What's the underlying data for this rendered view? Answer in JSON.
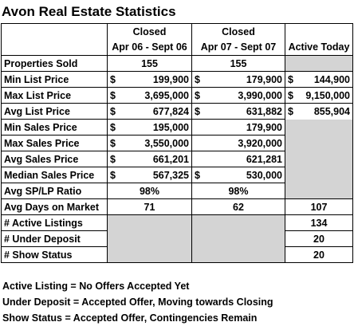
{
  "title": "Avon Real Estate Statistics",
  "headers": {
    "closed1_line1": "Closed",
    "closed1_line2": "Apr 06 - Sept 06",
    "closed2_line1": "Closed",
    "closed2_line2": "Apr 07 - Sept 07",
    "active": "Active Today"
  },
  "rows": [
    {
      "label": "Properties Sold",
      "c1": "155",
      "c2": "155",
      "active": ""
    },
    {
      "label": "Min List Price",
      "c1": "199,900",
      "c2": "179,900",
      "active": "144,900"
    },
    {
      "label": "Max List Price",
      "c1": "3,695,000",
      "c2": "3,990,000",
      "active": "9,150,000"
    },
    {
      "label": "Avg List Price",
      "c1": "677,824",
      "c2": "631,882",
      "active": "855,904"
    },
    {
      "label": "Min Sales Price",
      "c1": "195,000",
      "c2": "179,900",
      "active": ""
    },
    {
      "label": "Max Sales Price",
      "c1": "3,550,000",
      "c2": "3,920,000",
      "active": ""
    },
    {
      "label": "Avg Sales Price",
      "c1": "661,201",
      "c2": "621,281",
      "active": ""
    },
    {
      "label": "Median Sales Price",
      "c1": "567,325",
      "c2": "530,000",
      "active": ""
    },
    {
      "label": "Avg SP/LP Ratio",
      "c1": "98%",
      "c2": "98%",
      "active": ""
    },
    {
      "label": "Avg Days on Market",
      "c1": "71",
      "c2": "62",
      "active": "107"
    },
    {
      "label": "# Active Listings",
      "c1": "",
      "c2": "",
      "active": "134"
    },
    {
      "label": "# Under Deposit",
      "c1": "",
      "c2": "",
      "active": "20"
    },
    {
      "label": "# Show Status",
      "c1": "",
      "c2": "",
      "active": "20"
    }
  ],
  "currency_symbol": "$",
  "notes": [
    "Active Listing = No Offers Accepted Yet",
    "Under Deposit = Accepted Offer, Moving towards Closing",
    "Show Status = Accepted Offer, Contingencies Remain"
  ]
}
